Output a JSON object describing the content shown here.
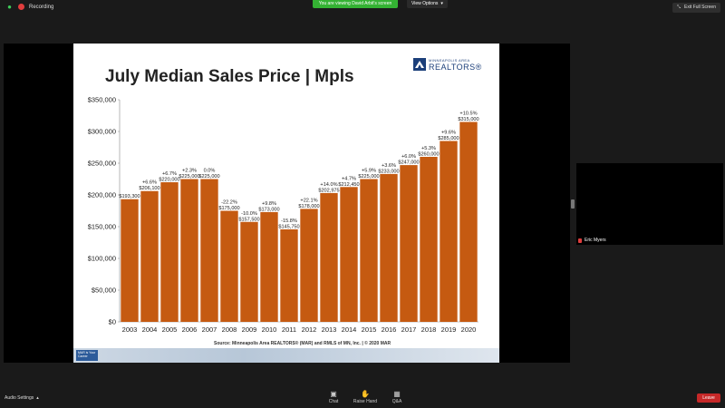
{
  "topbar": {
    "recording_label": "Recording",
    "viewing_banner": "You are viewing David Arbit's screen",
    "view_options_label": "View Options",
    "exit_fullscreen_label": "Exit Full Screen"
  },
  "slide": {
    "title": "July Median Sales Price | Mpls",
    "logo_line1": "MINNEAPOLIS AREA",
    "logo_line2": "REALTORS®",
    "source_label": "Source:",
    "source_text": "Minneapolis Area REALTORS® (MAR) and RMLS of MN, Inc. | © 2020 MAR",
    "banner_badge": "MAR is Your Career"
  },
  "chart_data": {
    "type": "bar",
    "title": "July Median Sales Price | Mpls",
    "categories": [
      "2003",
      "2004",
      "2005",
      "2006",
      "2007",
      "2008",
      "2009",
      "2010",
      "2011",
      "2012",
      "2013",
      "2014",
      "2015",
      "2016",
      "2017",
      "2018",
      "2019",
      "2020"
    ],
    "values": [
      193300,
      206100,
      220000,
      225000,
      225000,
      175000,
      157500,
      173000,
      145750,
      178000,
      202975,
      212450,
      225000,
      233000,
      247000,
      260000,
      285000,
      315000
    ],
    "value_labels": [
      "$193,300",
      "$206,100",
      "$220,000",
      "$225,000",
      "$225,000",
      "$175,000",
      "$157,500",
      "$173,000",
      "$145,750",
      "$178,000",
      "$202,975",
      "$212,450",
      "$225,000",
      "$233,000",
      "$247,000",
      "$260,000",
      "$285,000",
      "$315,000"
    ],
    "pct_labels": [
      "",
      "+6.6%",
      "+6.7%",
      "+2.3%",
      "0.0%",
      "-22.2%",
      "-10.0%",
      "+9.8%",
      "-15.8%",
      "+22.1%",
      "+14.0%",
      "+4.7%",
      "+5.9%",
      "+3.6%",
      "+6.0%",
      "+5.3%",
      "+9.6%",
      "+10.5%"
    ],
    "ylim": [
      0,
      350000
    ],
    "y_ticks": [
      0,
      50000,
      100000,
      150000,
      200000,
      250000,
      300000,
      350000
    ],
    "y_tick_labels": [
      "$0",
      "$50,000",
      "$100,000",
      "$150,000",
      "$200,000",
      "$250,000",
      "$300,000",
      "$350,000"
    ],
    "grid": false,
    "bar_color": "#c55a11"
  },
  "side_video": {
    "name": "Eric Myers"
  },
  "bottombar": {
    "audio_settings_label": "Audio Settings",
    "chat_label": "Chat",
    "raise_hand_label": "Raise Hand",
    "qa_label": "Q&A",
    "leave_label": "Leave"
  }
}
